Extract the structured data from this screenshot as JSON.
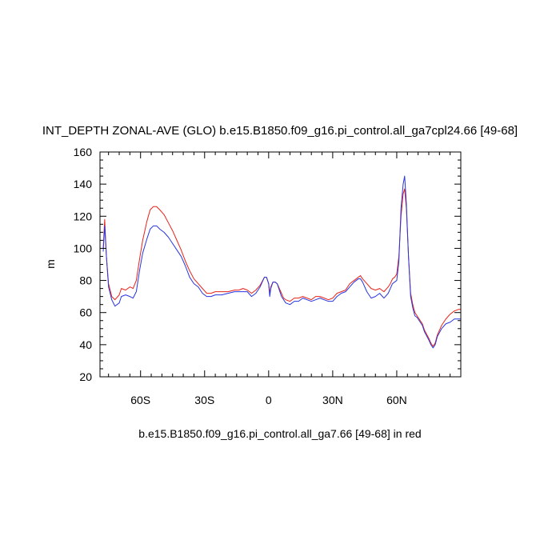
{
  "chart_data": {
    "type": "line",
    "title": "INT_DEPTH ZONAL-AVE (GLO) b.e15.B1850.f09_g16.pi_control.all_ga7cpl24.66 [49-68]",
    "xlabel": "b.e15.B1850.f09_g16.pi_control.all_ga7.66 [49-68] in red",
    "ylabel": "m",
    "xlim": [
      -79,
      90
    ],
    "ylim": [
      20,
      160
    ],
    "x_ticks": [
      {
        "value": -60,
        "label": "60S"
      },
      {
        "value": -30,
        "label": "30S"
      },
      {
        "value": 0,
        "label": "0"
      },
      {
        "value": 30,
        "label": "30N"
      },
      {
        "value": 60,
        "label": "60N"
      }
    ],
    "y_ticks": [
      {
        "value": 20,
        "label": "20"
      },
      {
        "value": 40,
        "label": "40"
      },
      {
        "value": 60,
        "label": "60"
      },
      {
        "value": 80,
        "label": "80"
      },
      {
        "value": 100,
        "label": "100"
      },
      {
        "value": 120,
        "label": "120"
      },
      {
        "value": 140,
        "label": "140"
      },
      {
        "value": 160,
        "label": "160"
      }
    ],
    "series": [
      {
        "color": "#e8221a",
        "points": [
          [
            -77.5,
            100
          ],
          [
            -76.8,
            118
          ],
          [
            -76,
            95
          ],
          [
            -75,
            78
          ],
          [
            -73.5,
            70
          ],
          [
            -72,
            68
          ],
          [
            -70,
            71
          ],
          [
            -69,
            75
          ],
          [
            -67,
            74
          ],
          [
            -65,
            76
          ],
          [
            -63.5,
            75
          ],
          [
            -62,
            80
          ],
          [
            -60.5,
            93
          ],
          [
            -59,
            105
          ],
          [
            -57,
            117
          ],
          [
            -55.5,
            124
          ],
          [
            -54,
            126
          ],
          [
            -52.5,
            126
          ],
          [
            -51,
            124
          ],
          [
            -49,
            121
          ],
          [
            -47,
            116
          ],
          [
            -45,
            111
          ],
          [
            -43,
            105
          ],
          [
            -41,
            99
          ],
          [
            -39,
            92
          ],
          [
            -37,
            86
          ],
          [
            -35,
            81
          ],
          [
            -33,
            78
          ],
          [
            -31,
            75
          ],
          [
            -29,
            72
          ],
          [
            -27,
            72
          ],
          [
            -25,
            73
          ],
          [
            -22,
            73
          ],
          [
            -19,
            73
          ],
          [
            -16,
            74
          ],
          [
            -14,
            74
          ],
          [
            -12,
            75
          ],
          [
            -10,
            74
          ],
          [
            -8,
            72
          ],
          [
            -6,
            74
          ],
          [
            -4,
            77
          ],
          [
            -2,
            82
          ],
          [
            -1,
            82
          ],
          [
            0,
            78
          ],
          [
            0.5,
            72
          ],
          [
            1,
            76
          ],
          [
            2,
            79
          ],
          [
            3,
            79
          ],
          [
            4,
            78
          ],
          [
            5,
            75
          ],
          [
            6,
            72
          ],
          [
            7,
            69
          ],
          [
            8,
            68
          ],
          [
            10,
            67
          ],
          [
            12,
            69
          ],
          [
            14,
            69
          ],
          [
            16,
            70
          ],
          [
            18,
            69
          ],
          [
            20,
            68
          ],
          [
            22,
            70
          ],
          [
            24,
            70
          ],
          [
            26,
            69
          ],
          [
            28,
            68
          ],
          [
            30,
            69
          ],
          [
            32,
            72
          ],
          [
            34,
            73
          ],
          [
            36,
            74
          ],
          [
            38,
            78
          ],
          [
            40,
            80
          ],
          [
            42,
            82
          ],
          [
            43,
            83
          ],
          [
            44,
            81
          ],
          [
            46,
            78
          ],
          [
            48,
            75
          ],
          [
            50,
            74
          ],
          [
            52,
            75
          ],
          [
            54,
            73
          ],
          [
            56,
            76
          ],
          [
            57,
            78
          ],
          [
            58,
            81
          ],
          [
            59,
            82
          ],
          [
            60,
            84
          ],
          [
            61,
            95
          ],
          [
            62,
            120
          ],
          [
            63,
            134
          ],
          [
            63.7,
            137
          ],
          [
            64.5,
            125
          ],
          [
            65.5,
            95
          ],
          [
            66.5,
            72
          ],
          [
            67.5,
            65
          ],
          [
            68.5,
            60
          ],
          [
            69.5,
            58
          ],
          [
            71,
            55
          ],
          [
            72,
            53
          ],
          [
            73,
            49
          ],
          [
            75,
            44
          ],
          [
            76,
            41
          ],
          [
            77,
            39
          ],
          [
            78,
            41
          ],
          [
            79,
            46
          ],
          [
            81,
            52
          ],
          [
            83,
            56
          ],
          [
            85,
            59
          ],
          [
            87,
            61
          ],
          [
            89,
            62
          ],
          [
            90,
            62
          ]
        ]
      },
      {
        "color": "#2636e0",
        "points": [
          [
            -77.5,
            98
          ],
          [
            -76.8,
            114
          ],
          [
            -76,
            95
          ],
          [
            -75,
            76
          ],
          [
            -73.5,
            68
          ],
          [
            -72,
            64
          ],
          [
            -70,
            66
          ],
          [
            -69,
            70
          ],
          [
            -67,
            71
          ],
          [
            -65,
            70
          ],
          [
            -63.5,
            69
          ],
          [
            -62,
            73
          ],
          [
            -60.5,
            86
          ],
          [
            -59,
            97
          ],
          [
            -57,
            106
          ],
          [
            -55.5,
            112
          ],
          [
            -54,
            114
          ],
          [
            -52.5,
            114
          ],
          [
            -51,
            112
          ],
          [
            -49,
            110
          ],
          [
            -47,
            107
          ],
          [
            -45,
            103
          ],
          [
            -43,
            99
          ],
          [
            -41,
            95
          ],
          [
            -39,
            89
          ],
          [
            -37,
            82
          ],
          [
            -35,
            78
          ],
          [
            -33,
            76
          ],
          [
            -31,
            72
          ],
          [
            -29,
            70
          ],
          [
            -27,
            70
          ],
          [
            -25,
            71
          ],
          [
            -22,
            71
          ],
          [
            -19,
            72
          ],
          [
            -16,
            73
          ],
          [
            -14,
            73
          ],
          [
            -12,
            73
          ],
          [
            -10,
            73
          ],
          [
            -8,
            70
          ],
          [
            -6,
            72
          ],
          [
            -4,
            76
          ],
          [
            -2,
            82
          ],
          [
            -1,
            82
          ],
          [
            0,
            78
          ],
          [
            0.5,
            70
          ],
          [
            1,
            75
          ],
          [
            2,
            79
          ],
          [
            3,
            79
          ],
          [
            4,
            78
          ],
          [
            5,
            74
          ],
          [
            6,
            70
          ],
          [
            7,
            68
          ],
          [
            8,
            66
          ],
          [
            10,
            65
          ],
          [
            12,
            67
          ],
          [
            14,
            67
          ],
          [
            16,
            69
          ],
          [
            18,
            68
          ],
          [
            20,
            67
          ],
          [
            22,
            68
          ],
          [
            24,
            69
          ],
          [
            26,
            68
          ],
          [
            28,
            67
          ],
          [
            30,
            67
          ],
          [
            32,
            70
          ],
          [
            34,
            72
          ],
          [
            36,
            73
          ],
          [
            38,
            76
          ],
          [
            40,
            79
          ],
          [
            42,
            81
          ],
          [
            43,
            81
          ],
          [
            44,
            79
          ],
          [
            46,
            73
          ],
          [
            48,
            69
          ],
          [
            50,
            70
          ],
          [
            52,
            72
          ],
          [
            54,
            69
          ],
          [
            56,
            72
          ],
          [
            57,
            75
          ],
          [
            58,
            78
          ],
          [
            59,
            79
          ],
          [
            60,
            80
          ],
          [
            61,
            92
          ],
          [
            62,
            125
          ],
          [
            63,
            140
          ],
          [
            63.7,
            145
          ],
          [
            64.5,
            128
          ],
          [
            65.5,
            95
          ],
          [
            66.5,
            70
          ],
          [
            67.5,
            63
          ],
          [
            68.5,
            58
          ],
          [
            69.5,
            57
          ],
          [
            71,
            54
          ],
          [
            72,
            52
          ],
          [
            73,
            48
          ],
          [
            75,
            43
          ],
          [
            76,
            40
          ],
          [
            77,
            38
          ],
          [
            78,
            40
          ],
          [
            79,
            45
          ],
          [
            81,
            50
          ],
          [
            83,
            53
          ],
          [
            85,
            54
          ],
          [
            87,
            56
          ],
          [
            89,
            56
          ],
          [
            90,
            56
          ]
        ]
      }
    ]
  }
}
